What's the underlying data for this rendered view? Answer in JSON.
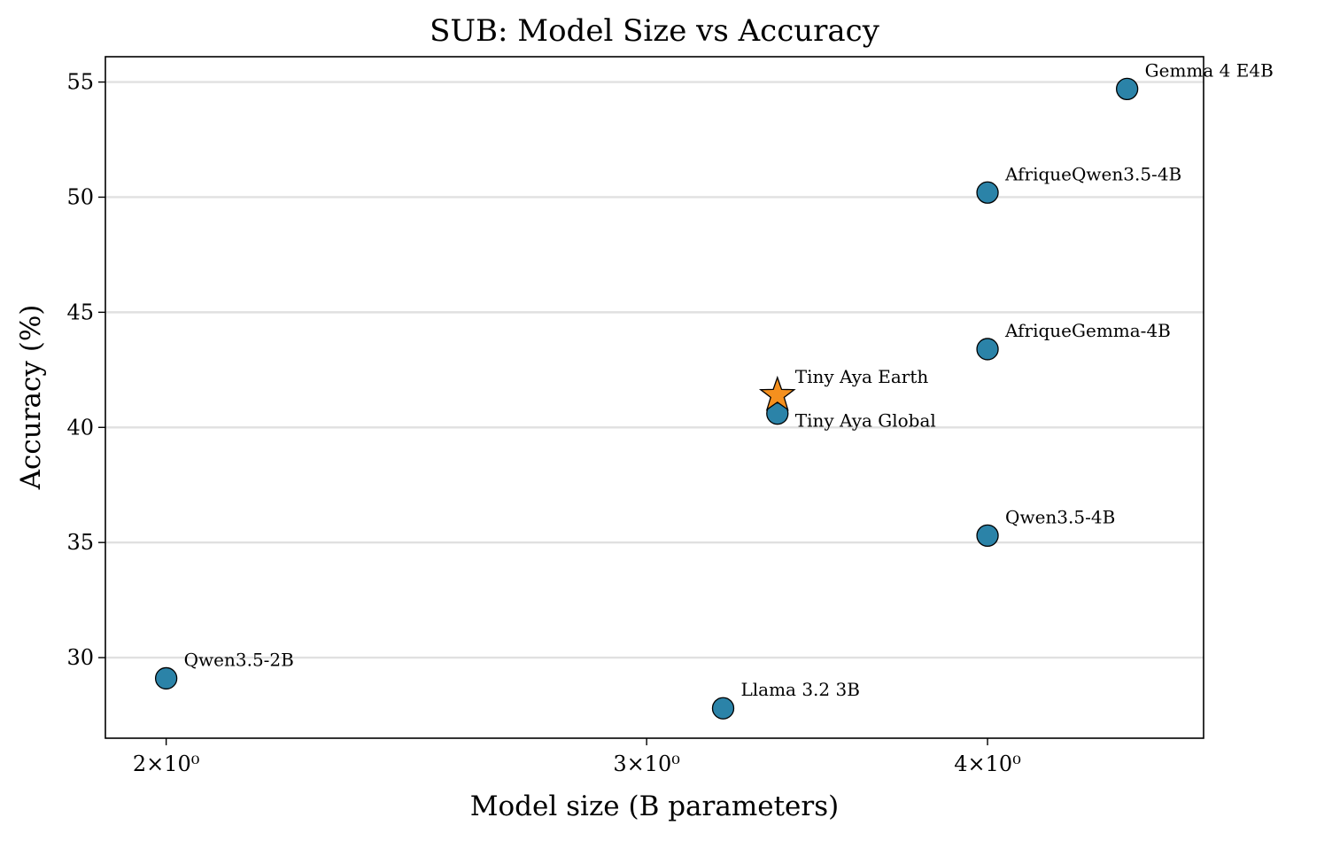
{
  "chart_data": {
    "type": "scatter",
    "title": "SUB: Model Size vs Accuracy",
    "xlabel": "Model size (B parameters)",
    "ylabel": "Accuracy (%)",
    "x_scale": "log",
    "xlim": [
      1.9,
      4.8
    ],
    "ylim": [
      26.5,
      56.1
    ],
    "grid": "horizontal",
    "x_ticks": [
      {
        "value": 2,
        "label": "2×10⁰"
      },
      {
        "value": 3,
        "label": "3×10⁰"
      },
      {
        "value": 4,
        "label": "4×10⁰"
      }
    ],
    "y_ticks": [
      {
        "value": 30,
        "label": "30"
      },
      {
        "value": 35,
        "label": "35"
      },
      {
        "value": 40,
        "label": "40"
      },
      {
        "value": 45,
        "label": "45"
      },
      {
        "value": 50,
        "label": "50"
      },
      {
        "value": 55,
        "label": "55"
      }
    ],
    "colors": {
      "circle": "#2b83a8",
      "star": "#f5901e",
      "edge": "#000000",
      "grid": "#e0e0e0"
    },
    "points": [
      {
        "label": "Gemma 4 E4B",
        "x": 4.5,
        "y": 54.7,
        "marker": "circle",
        "label_pos": "above-right"
      },
      {
        "label": "AfriqueQwen3.5-4B",
        "x": 4.0,
        "y": 50.2,
        "marker": "circle",
        "label_pos": "above-right"
      },
      {
        "label": "AfriqueGemma-4B",
        "x": 4.0,
        "y": 43.4,
        "marker": "circle",
        "label_pos": "above-right"
      },
      {
        "label": "Tiny Aya Earth",
        "x": 3.35,
        "y": 41.4,
        "marker": "star",
        "label_pos": "above-right"
      },
      {
        "label": "Tiny Aya Global",
        "x": 3.35,
        "y": 40.6,
        "marker": "circle",
        "label_pos": "below-right"
      },
      {
        "label": "Qwen3.5-4B",
        "x": 4.0,
        "y": 35.3,
        "marker": "circle",
        "label_pos": "above-right"
      },
      {
        "label": "Qwen3.5-2B",
        "x": 2.0,
        "y": 29.1,
        "marker": "circle",
        "label_pos": "above-right"
      },
      {
        "label": "Llama 3.2 3B",
        "x": 3.2,
        "y": 27.8,
        "marker": "circle",
        "label_pos": "above-right"
      }
    ]
  }
}
